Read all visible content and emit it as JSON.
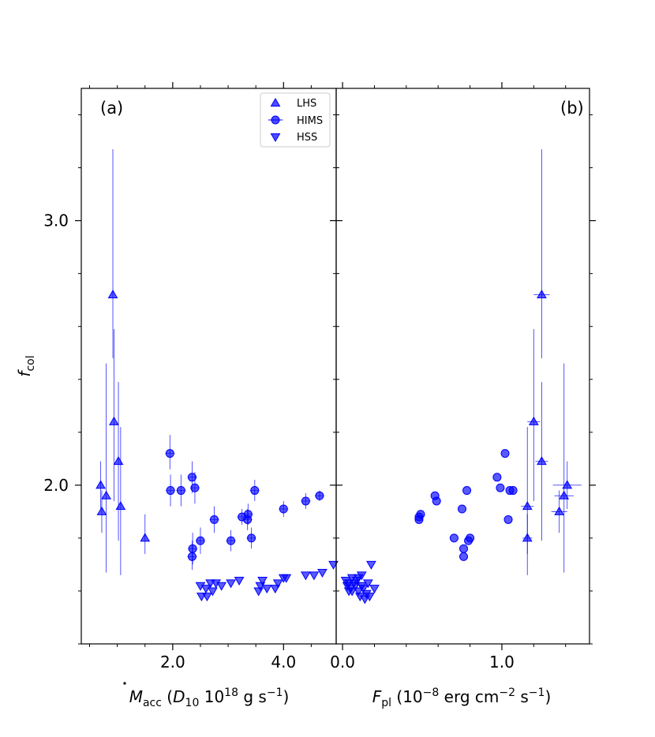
{
  "chart_data": [
    {
      "panel": "a",
      "type": "scatter",
      "panel_label": "(a)",
      "xlabel": "Ṁ_acc (D_10 10^18 g s^-1)",
      "xlabel_parts": {
        "symbol": "M",
        "sub": "acc",
        "open": " (",
        "D": "D",
        "D_sub": "10",
        "mid": " 10",
        "exp": "18",
        "unit": " g s",
        "unit_exp": "−1",
        "close": ")"
      },
      "ylabel": "f_col",
      "ylabel_parts": {
        "symbol": "f",
        "sub": "col"
      },
      "xlim": [
        0.35,
        4.95
      ],
      "ylim": [
        1.4,
        3.5
      ],
      "xticks": [
        2.0,
        4.0
      ],
      "xtick_labels": [
        "2.0",
        "4.0"
      ],
      "yticks": [
        2.0,
        3.0
      ],
      "ytick_labels": [
        "2.0",
        "3.0"
      ],
      "series": [
        {
          "name": "LHS",
          "marker": "triangle-up",
          "color": "#0000ff",
          "points": [
            {
              "x": 0.7,
              "y": 2.0,
              "yerr": [
                0.09,
                0.09
              ]
            },
            {
              "x": 0.72,
              "y": 1.9,
              "yerr": [
                0.08,
                0.08
              ]
            },
            {
              "x": 0.8,
              "y": 1.96,
              "yerr": [
                0.29,
                0.5
              ]
            },
            {
              "x": 0.92,
              "y": 2.72,
              "yerr": [
                0.24,
                0.55
              ]
            },
            {
              "x": 0.94,
              "y": 2.24,
              "yerr": [
                0.3,
                0.35
              ]
            },
            {
              "x": 1.02,
              "y": 2.09,
              "yerr": [
                0.3,
                0.3
              ]
            },
            {
              "x": 1.06,
              "y": 1.92,
              "yerr": [
                0.26,
                0.3
              ]
            },
            {
              "x": 1.5,
              "y": 1.8,
              "yerr": [
                0.06,
                0.09
              ]
            }
          ]
        },
        {
          "name": "HIMS",
          "marker": "circle",
          "color": "#0000ff",
          "points": [
            {
              "x": 1.95,
              "y": 2.12,
              "yerr": [
                0.06,
                0.07
              ]
            },
            {
              "x": 1.96,
              "y": 1.98,
              "yerr": [
                0.06,
                0.06
              ]
            },
            {
              "x": 2.15,
              "y": 1.98,
              "yerr": [
                0.06,
                0.06
              ]
            },
            {
              "x": 2.35,
              "y": 2.03,
              "yerr": [
                0.06,
                0.06
              ]
            },
            {
              "x": 2.36,
              "y": 1.76,
              "yerr": [
                0.06,
                0.06
              ]
            },
            {
              "x": 2.35,
              "y": 1.73,
              "yerr": [
                0.05,
                0.06
              ]
            },
            {
              "x": 2.4,
              "y": 1.99,
              "yerr": [
                0.06,
                0.06
              ]
            },
            {
              "x": 2.5,
              "y": 1.79,
              "yerr": [
                0.05,
                0.05
              ]
            },
            {
              "x": 2.75,
              "y": 1.87,
              "yerr": [
                0.05,
                0.05
              ]
            },
            {
              "x": 3.05,
              "y": 1.79,
              "yerr": [
                0.04,
                0.04
              ]
            },
            {
              "x": 3.25,
              "y": 1.88,
              "yerr": [
                0.03,
                0.03
              ]
            },
            {
              "x": 3.35,
              "y": 1.87,
              "yerr": [
                0.04,
                0.04
              ]
            },
            {
              "x": 3.36,
              "y": 1.89,
              "yerr": [
                0.04,
                0.04
              ]
            },
            {
              "x": 3.42,
              "y": 1.8,
              "yerr": [
                0.04,
                0.04
              ]
            },
            {
              "x": 3.48,
              "y": 1.98,
              "yerr": [
                0.04,
                0.04
              ]
            },
            {
              "x": 4.0,
              "y": 1.91,
              "yerr": [
                0.03,
                0.03
              ]
            },
            {
              "x": 4.4,
              "y": 1.94,
              "yerr": [
                0.03,
                0.03
              ]
            },
            {
              "x": 4.65,
              "y": 1.96,
              "yerr": [
                0.02,
                0.02
              ]
            }
          ]
        },
        {
          "name": "HSS",
          "marker": "triangle-down",
          "color": "#0000ff",
          "points": [
            {
              "x": 2.5,
              "y": 1.62
            },
            {
              "x": 2.52,
              "y": 1.58
            },
            {
              "x": 2.6,
              "y": 1.61
            },
            {
              "x": 2.62,
              "y": 1.58
            },
            {
              "x": 2.68,
              "y": 1.63
            },
            {
              "x": 2.72,
              "y": 1.6
            },
            {
              "x": 2.78,
              "y": 1.63
            },
            {
              "x": 2.88,
              "y": 1.62
            },
            {
              "x": 3.05,
              "y": 1.63
            },
            {
              "x": 3.2,
              "y": 1.64
            },
            {
              "x": 3.55,
              "y": 1.6
            },
            {
              "x": 3.58,
              "y": 1.62
            },
            {
              "x": 3.62,
              "y": 1.64
            },
            {
              "x": 3.7,
              "y": 1.61
            },
            {
              "x": 3.85,
              "y": 1.61
            },
            {
              "x": 3.9,
              "y": 1.63
            },
            {
              "x": 4.0,
              "y": 1.65
            },
            {
              "x": 4.05,
              "y": 1.65
            },
            {
              "x": 4.4,
              "y": 1.66
            },
            {
              "x": 4.55,
              "y": 1.66
            },
            {
              "x": 4.7,
              "y": 1.67
            },
            {
              "x": 4.9,
              "y": 1.7
            }
          ]
        }
      ]
    },
    {
      "panel": "b",
      "type": "scatter",
      "panel_label": "(b)",
      "xlabel": "F_pl (10^-8 erg cm^-2 s^-1)",
      "xlabel_parts": {
        "symbol": "F",
        "sub": "pl",
        "open": " (10",
        "exp1": "−8",
        "mid": " erg cm",
        "exp2": "−2",
        "unit": " s",
        "unit_exp": "−1",
        "close": ")"
      },
      "xlim": [
        -0.04,
        1.55
      ],
      "ylim": [
        1.4,
        3.5
      ],
      "xticks": [
        0.0,
        1.0
      ],
      "xtick_labels": [
        "0.0",
        "1.0"
      ],
      "series": [
        {
          "name": "LHS",
          "marker": "triangle-up",
          "color": "#0000ff",
          "points": [
            {
              "x": 1.16,
              "y": 1.8,
              "xerr": 0.03,
              "yerr": [
                0.06,
                0.09
              ]
            },
            {
              "x": 1.16,
              "y": 1.92,
              "xerr": 0.04,
              "yerr": [
                0.26,
                0.3
              ]
            },
            {
              "x": 1.2,
              "y": 2.24,
              "xerr": 0.04,
              "yerr": [
                0.3,
                0.35
              ]
            },
            {
              "x": 1.25,
              "y": 2.72,
              "xerr": 0.05,
              "yerr": [
                0.24,
                0.55
              ]
            },
            {
              "x": 1.25,
              "y": 2.09,
              "xerr": 0.04,
              "yerr": [
                0.3,
                0.3
              ]
            },
            {
              "x": 1.36,
              "y": 1.9,
              "xerr": 0.05,
              "yerr": [
                0.08,
                0.08
              ]
            },
            {
              "x": 1.39,
              "y": 1.96,
              "xerr": 0.06,
              "yerr": [
                0.29,
                0.5
              ]
            },
            {
              "x": 1.41,
              "y": 2.0,
              "xerr": 0.09,
              "yerr": [
                0.09,
                0.09
              ]
            }
          ]
        },
        {
          "name": "HIMS",
          "marker": "circle",
          "color": "#0000ff",
          "points": [
            {
              "x": 0.48,
              "y": 1.88
            },
            {
              "x": 0.48,
              "y": 1.87
            },
            {
              "x": 0.49,
              "y": 1.89
            },
            {
              "x": 0.58,
              "y": 1.96
            },
            {
              "x": 0.59,
              "y": 1.94
            },
            {
              "x": 0.7,
              "y": 1.8
            },
            {
              "x": 0.75,
              "y": 1.91
            },
            {
              "x": 0.76,
              "y": 1.76
            },
            {
              "x": 0.76,
              "y": 1.73
            },
            {
              "x": 0.78,
              "y": 1.98
            },
            {
              "x": 0.79,
              "y": 1.79
            },
            {
              "x": 0.8,
              "y": 1.8
            },
            {
              "x": 0.97,
              "y": 2.03
            },
            {
              "x": 0.99,
              "y": 1.99
            },
            {
              "x": 1.02,
              "y": 2.12
            },
            {
              "x": 1.04,
              "y": 1.87
            },
            {
              "x": 1.05,
              "y": 1.98
            },
            {
              "x": 1.07,
              "y": 1.98
            }
          ]
        },
        {
          "name": "HSS",
          "marker": "triangle-down",
          "color": "#0000ff",
          "points": [
            {
              "x": 0.02,
              "y": 1.64
            },
            {
              "x": 0.03,
              "y": 1.62
            },
            {
              "x": 0.04,
              "y": 1.63
            },
            {
              "x": 0.05,
              "y": 1.61
            },
            {
              "x": 0.06,
              "y": 1.65
            },
            {
              "x": 0.06,
              "y": 1.6
            },
            {
              "x": 0.07,
              "y": 1.63
            },
            {
              "x": 0.08,
              "y": 1.62
            },
            {
              "x": 0.09,
              "y": 1.64
            },
            {
              "x": 0.1,
              "y": 1.6
            },
            {
              "x": 0.11,
              "y": 1.58
            },
            {
              "x": 0.12,
              "y": 1.62
            },
            {
              "x": 0.12,
              "y": 1.66
            },
            {
              "x": 0.13,
              "y": 1.61
            },
            {
              "x": 0.14,
              "y": 1.57
            },
            {
              "x": 0.15,
              "y": 1.59
            },
            {
              "x": 0.16,
              "y": 1.63
            },
            {
              "x": 0.17,
              "y": 1.58
            },
            {
              "x": 0.18,
              "y": 1.7
            },
            {
              "x": 0.2,
              "y": 1.61
            },
            {
              "x": 0.1,
              "y": 1.65
            },
            {
              "x": 0.04,
              "y": 1.6
            }
          ]
        }
      ]
    }
  ],
  "legend": {
    "location": "top-right of panel a",
    "entries": [
      {
        "label": "LHS",
        "marker": "triangle-up"
      },
      {
        "label": "HIMS",
        "marker": "circle"
      },
      {
        "label": "HSS",
        "marker": "triangle-down"
      }
    ]
  }
}
